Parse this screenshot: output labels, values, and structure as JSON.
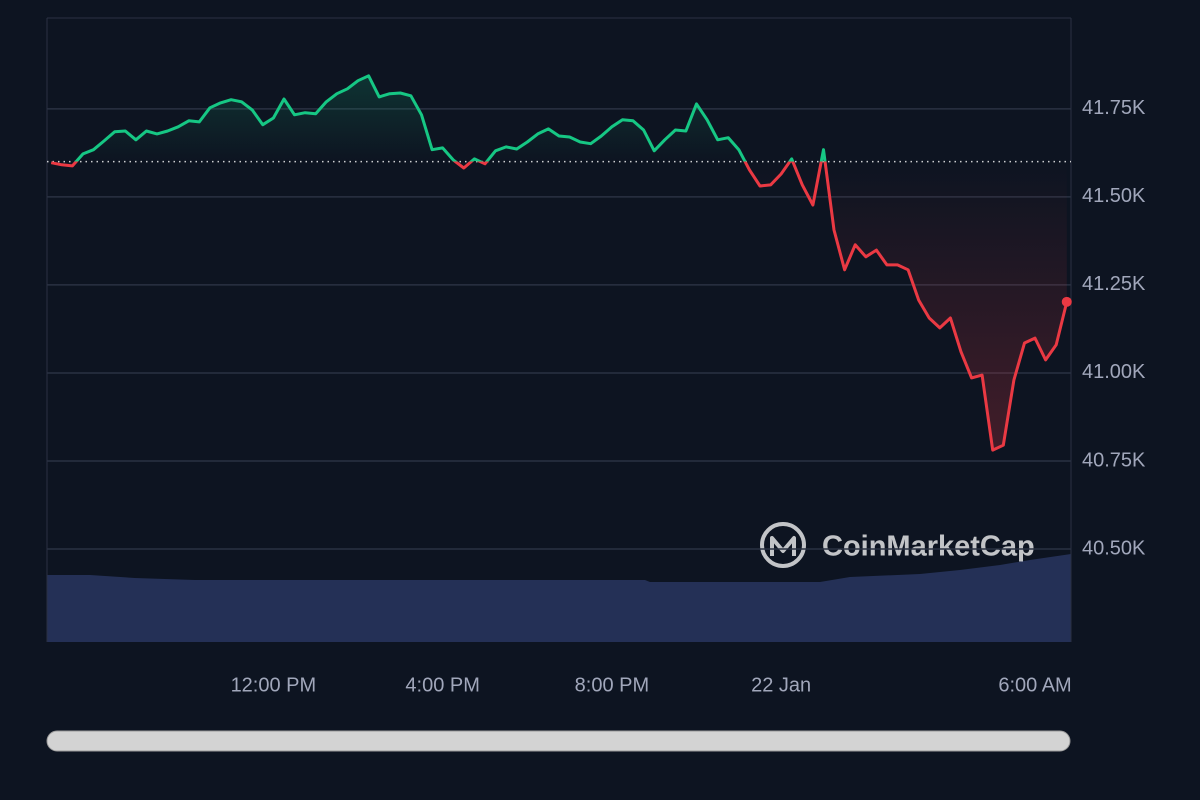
{
  "chart_data": {
    "type": "line",
    "watermark": "CoinMarketCap",
    "x": [
      6.75,
      7,
      7.25,
      7.5,
      7.75,
      8,
      8.25,
      8.5,
      8.75,
      9,
      9.25,
      9.5,
      9.75,
      10,
      10.25,
      10.5,
      10.75,
      11,
      11.25,
      11.5,
      11.75,
      12,
      12.25,
      12.5,
      12.75,
      13,
      13.25,
      13.5,
      13.75,
      14,
      14.25,
      14.5,
      14.75,
      15,
      15.25,
      15.5,
      15.75,
      16,
      16.25,
      16.5,
      16.75,
      17,
      17.25,
      17.5,
      17.75,
      18,
      18.25,
      18.5,
      18.75,
      19,
      19.25,
      19.5,
      19.75,
      20,
      20.25,
      20.5,
      20.75,
      21,
      21.25,
      21.5,
      21.75,
      22,
      22.25,
      22.5,
      22.75,
      23,
      23.25,
      23.5,
      23.75,
      24,
      24.25,
      24.5,
      24.75,
      25,
      25.25,
      25.5,
      25.75,
      26,
      26.25,
      26.5,
      26.75,
      27,
      27.25,
      27.5,
      27.75,
      28,
      28.25,
      28.5,
      28.75,
      29,
      29.25,
      29.5,
      29.75,
      30,
      30.25,
      30.5,
      30.75
    ],
    "values": [
      41597,
      41591,
      41588,
      41622,
      41634,
      41659,
      41685,
      41687,
      41662,
      41687,
      41679,
      41687,
      41699,
      41716,
      41713,
      41753,
      41767,
      41776,
      41770,
      41747,
      41705,
      41724,
      41778,
      41733,
      41739,
      41736,
      41770,
      41793,
      41807,
      41830,
      41844,
      41784,
      41793,
      41795,
      41787,
      41733,
      41634,
      41639,
      41605,
      41582,
      41608,
      41594,
      41631,
      41642,
      41636,
      41656,
      41679,
      41693,
      41673,
      41670,
      41656,
      41651,
      41673,
      41699,
      41719,
      41716,
      41690,
      41631,
      41662,
      41690,
      41687,
      41764,
      41719,
      41662,
      41668,
      41634,
      41577,
      41531,
      41534,
      41565,
      41608,
      41534,
      41477,
      41634,
      41406,
      41293,
      41364,
      41330,
      41349,
      41307,
      41307,
      41293,
      41207,
      41156,
      41128,
      41156,
      41060,
      40986,
      40994,
      40781,
      40795,
      40980,
      41085,
      41099,
      41037,
      41080,
      41202
    ],
    "baseline": 41600,
    "up_color": "#16c784",
    "down_color": "#ea3943",
    "xlim": [
      6.65,
      30.85
    ],
    "xticks": [
      {
        "value": 12,
        "label": "12:00 PM"
      },
      {
        "value": 16,
        "label": "4:00 PM"
      },
      {
        "value": 20,
        "label": "8:00 PM"
      },
      {
        "value": 24,
        "label": "22 Jan"
      },
      {
        "value": 30,
        "label": "6:00 AM"
      }
    ],
    "ylim": [
      40236,
      42008
    ],
    "yticks": [
      {
        "value": 40500,
        "label": "40.50K"
      },
      {
        "value": 40750,
        "label": "40.75K"
      },
      {
        "value": 41000,
        "label": "41.00K"
      },
      {
        "value": 41250,
        "label": "41.25K"
      },
      {
        "value": 41500,
        "label": "41.50K"
      },
      {
        "value": 41750,
        "label": "41.75K"
      }
    ],
    "grid": true
  }
}
